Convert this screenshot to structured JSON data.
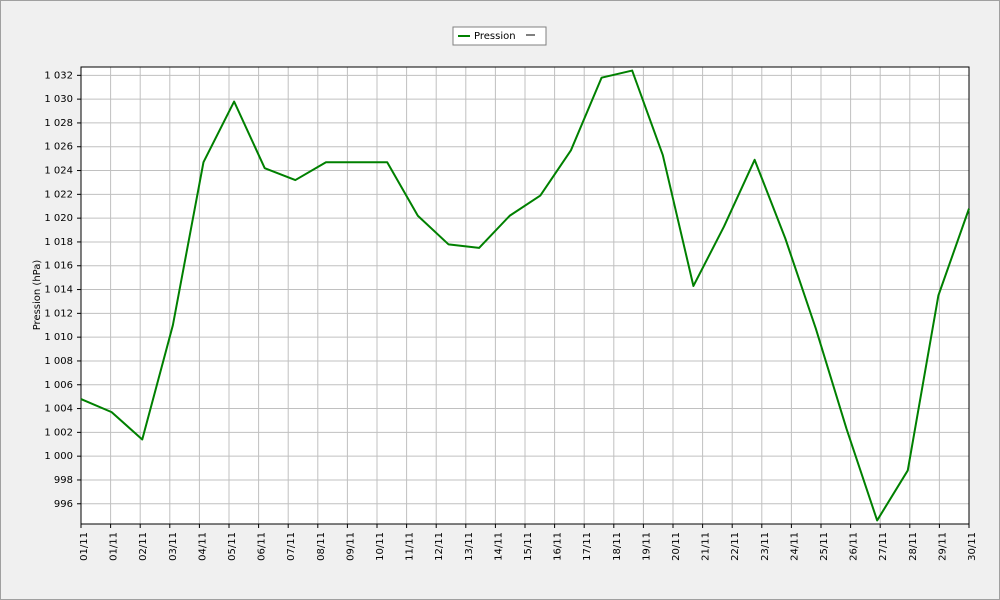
{
  "chart_data": {
    "type": "line",
    "y_label": "Pression (hPa)",
    "x": [
      1,
      2,
      3,
      4,
      5,
      6,
      7,
      8,
      9,
      10,
      11,
      12,
      13,
      14,
      15,
      16,
      17,
      18,
      19,
      20,
      21,
      22,
      23,
      24,
      25,
      26,
      27,
      28,
      29,
      30
    ],
    "series": [
      {
        "name": "Pression",
        "color": "#008000",
        "values": [
          1004.8,
          1003.7,
          1001.4,
          1011.0,
          1024.7,
          1029.8,
          1024.2,
          1023.2,
          1024.7,
          1024.7,
          1024.7,
          1020.2,
          1017.8,
          1017.5,
          1020.2,
          1021.9,
          1025.7,
          1031.8,
          1032.4,
          1025.3,
          1014.3,
          1019.3,
          1024.9,
          1018.3,
          1010.7,
          1002.3,
          994.6,
          998.8,
          1013.5,
          1020.8
        ]
      }
    ],
    "xlim": [
      1,
      30
    ],
    "xticks": [
      {
        "value": 1,
        "label": "01/11"
      },
      {
        "value": 1.9667,
        "label": "01/11"
      },
      {
        "value": 2.9333,
        "label": "02/11"
      },
      {
        "value": 3.9,
        "label": "03/11"
      },
      {
        "value": 4.8667,
        "label": "04/11"
      },
      {
        "value": 5.8333,
        "label": "05/11"
      },
      {
        "value": 6.8,
        "label": "06/11"
      },
      {
        "value": 7.7667,
        "label": "07/11"
      },
      {
        "value": 8.7333,
        "label": "08/11"
      },
      {
        "value": 9.7,
        "label": "09/11"
      },
      {
        "value": 10.6667,
        "label": "10/11"
      },
      {
        "value": 11.6333,
        "label": "11/11"
      },
      {
        "value": 12.6,
        "label": "12/11"
      },
      {
        "value": 13.5667,
        "label": "13/11"
      },
      {
        "value": 14.5333,
        "label": "14/11"
      },
      {
        "value": 15.5,
        "label": "15/11"
      },
      {
        "value": 16.4667,
        "label": "16/11"
      },
      {
        "value": 17.4333,
        "label": "17/11"
      },
      {
        "value": 18.4,
        "label": "18/11"
      },
      {
        "value": 19.3667,
        "label": "19/11"
      },
      {
        "value": 20.3333,
        "label": "20/11"
      },
      {
        "value": 21.3,
        "label": "21/11"
      },
      {
        "value": 22.2667,
        "label": "22/11"
      },
      {
        "value": 23.2333,
        "label": "23/11"
      },
      {
        "value": 24.2,
        "label": "24/11"
      },
      {
        "value": 25.1667,
        "label": "25/11"
      },
      {
        "value": 26.1333,
        "label": "26/11"
      },
      {
        "value": 27.1,
        "label": "27/11"
      },
      {
        "value": 28.0667,
        "label": "28/11"
      },
      {
        "value": 29.0333,
        "label": "29/11"
      },
      {
        "value": 30,
        "label": "30/11"
      }
    ],
    "ylim": [
      994.3,
      1032.7
    ],
    "yticks": [
      {
        "value": 996,
        "label": "996"
      },
      {
        "value": 998,
        "label": "998"
      },
      {
        "value": 1000,
        "label": "1 000"
      },
      {
        "value": 1002,
        "label": "1 002"
      },
      {
        "value": 1004,
        "label": "1 004"
      },
      {
        "value": 1006,
        "label": "1 006"
      },
      {
        "value": 1008,
        "label": "1 008"
      },
      {
        "value": 1010,
        "label": "1 010"
      },
      {
        "value": 1012,
        "label": "1 012"
      },
      {
        "value": 1014,
        "label": "1 014"
      },
      {
        "value": 1016,
        "label": "1 016"
      },
      {
        "value": 1018,
        "label": "1 018"
      },
      {
        "value": 1020,
        "label": "1 020"
      },
      {
        "value": 1022,
        "label": "1 022"
      },
      {
        "value": 1024,
        "label": "1 024"
      },
      {
        "value": 1026,
        "label": "1 026"
      },
      {
        "value": 1028,
        "label": "1 028"
      },
      {
        "value": 1030,
        "label": "1 030"
      },
      {
        "value": 1032,
        "label": "1 032"
      }
    ],
    "grid": true
  }
}
